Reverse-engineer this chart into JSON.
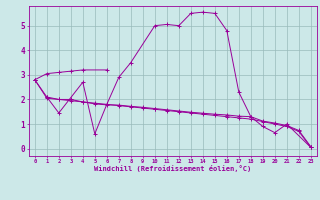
{
  "xlabel": "Windchill (Refroidissement éolien,°C)",
  "background_color": "#cce8e8",
  "line_color": "#990099",
  "grid_color": "#99bbbb",
  "xlim": [
    -0.5,
    23.5
  ],
  "ylim": [
    -0.3,
    5.8
  ],
  "xticks": [
    0,
    1,
    2,
    3,
    4,
    5,
    6,
    7,
    8,
    9,
    10,
    11,
    12,
    13,
    14,
    15,
    16,
    17,
    18,
    19,
    20,
    21,
    22,
    23
  ],
  "yticks": [
    0,
    1,
    2,
    3,
    4,
    5
  ],
  "s1_x": [
    0,
    1,
    2,
    3,
    4,
    6
  ],
  "s1_y": [
    2.8,
    3.05,
    3.1,
    3.15,
    3.2,
    3.2
  ],
  "s2_x": [
    1,
    2,
    4,
    5,
    6,
    7,
    8,
    10,
    11,
    12,
    13,
    14,
    15,
    16,
    17,
    18,
    19,
    20,
    21,
    23
  ],
  "s2_y": [
    2.1,
    1.45,
    2.7,
    0.6,
    1.8,
    2.9,
    3.5,
    5.0,
    5.05,
    5.0,
    5.5,
    5.55,
    5.5,
    4.8,
    2.3,
    1.3,
    0.9,
    0.65,
    1.0,
    0.05
  ],
  "s3_x": [
    0,
    1,
    2,
    3,
    4,
    5,
    6,
    7,
    8,
    9,
    10,
    11,
    12,
    13,
    14,
    15,
    16,
    17,
    18,
    19,
    20,
    21,
    22,
    23
  ],
  "s3_y": [
    2.8,
    2.1,
    2.0,
    2.0,
    1.9,
    1.85,
    1.8,
    1.75,
    1.7,
    1.65,
    1.6,
    1.55,
    1.5,
    1.45,
    1.4,
    1.35,
    1.3,
    1.25,
    1.2,
    1.1,
    1.0,
    0.9,
    0.7,
    0.05
  ],
  "s4_x": [
    0,
    1,
    2,
    3,
    4,
    5,
    6,
    7,
    8,
    9,
    10,
    11,
    12,
    13,
    14,
    15,
    16,
    17,
    18,
    19,
    20,
    21,
    22,
    23
  ],
  "s4_y": [
    2.8,
    2.05,
    2.0,
    1.95,
    1.9,
    1.82,
    1.78,
    1.77,
    1.72,
    1.68,
    1.63,
    1.58,
    1.53,
    1.48,
    1.44,
    1.4,
    1.37,
    1.32,
    1.3,
    1.12,
    1.04,
    0.94,
    0.74,
    0.08
  ]
}
